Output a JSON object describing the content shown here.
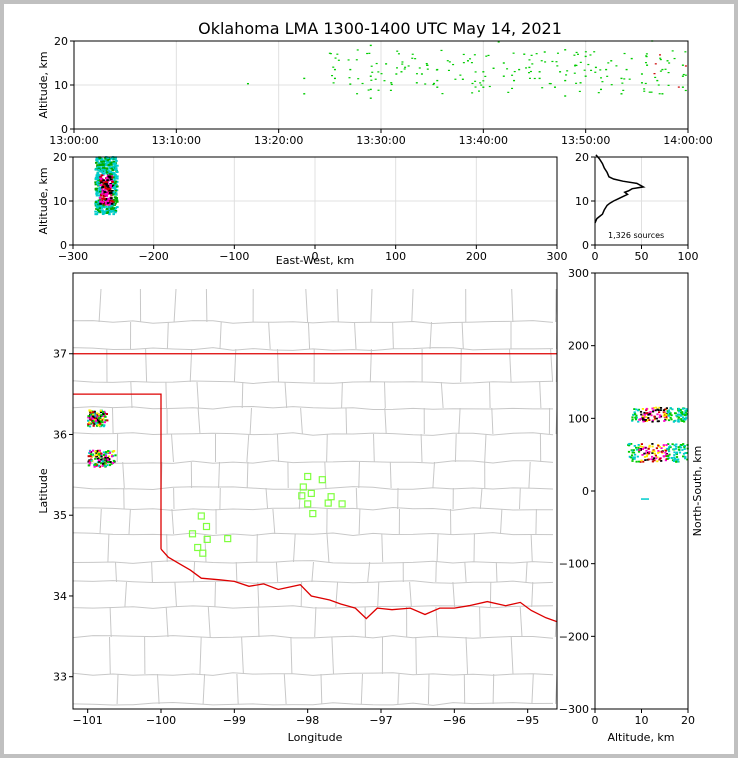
{
  "title": "Oklahoma LMA 1300-1400 UTC May 14, 2021",
  "panels": {
    "time_height": {
      "ylabel": "Altitude, km",
      "yticks": [
        "0",
        "10",
        "20"
      ],
      "xticks": [
        "13:00:00",
        "13:10:00",
        "13:20:00",
        "13:30:00",
        "13:40:00",
        "13:50:00",
        "14:00:00"
      ]
    },
    "ew_height": {
      "ylabel": "Altitude, km",
      "xlabel": "East-West, km",
      "yticks": [
        "0",
        "10",
        "20"
      ],
      "xticks": [
        "−300",
        "−200",
        "−100",
        "0",
        "100",
        "200",
        "300"
      ]
    },
    "histogram": {
      "yticks": [
        "0",
        "10",
        "20"
      ],
      "xticks": [
        "0",
        "50",
        "100"
      ],
      "annotation": "1,326 sources"
    },
    "map": {
      "xlabel": "Longitude",
      "ylabel": "Latitude",
      "xticks": [
        "−101",
        "−100",
        "−99",
        "−98",
        "−97",
        "−96",
        "−95"
      ],
      "yticks": [
        "33",
        "34",
        "35",
        "36",
        "37"
      ]
    },
    "ns_height": {
      "xlabel": "Altitude, km",
      "ylabel": "North-South, km",
      "xticks": [
        "0",
        "10",
        "20"
      ],
      "yticks": [
        "−300",
        "−200",
        "−100",
        "0",
        "100",
        "200",
        "300"
      ]
    }
  },
  "chart_data": [
    {
      "type": "scatter",
      "panel": "time_height",
      "xlabel": "",
      "ylabel": "Altitude, km",
      "xlim": [
        "13:00:00",
        "14:00:00"
      ],
      "ylim": [
        0,
        20
      ],
      "grid": true,
      "description_of_points": "green source points, mostly 13:23-14:00, altitudes 7-19 km",
      "sample_points": [
        {
          "time": "13:17:00",
          "alt": 10.3
        },
        {
          "time": "13:22:30",
          "alt": 8.0
        },
        {
          "time": "13:22:30",
          "alt": 11.5
        },
        {
          "time": "13:25:30",
          "alt": 11.5
        },
        {
          "time": "13:25:30",
          "alt": 13.5
        },
        {
          "time": "13:27:00",
          "alt": 10.2
        },
        {
          "time": "13:27:00",
          "alt": 13.5
        },
        {
          "time": "13:29:00",
          "alt": 7.0
        },
        {
          "time": "13:29:00",
          "alt": 9.0
        },
        {
          "time": "13:29:00",
          "alt": 12.0
        },
        {
          "time": "13:29:00",
          "alt": 19.0
        },
        {
          "time": "13:30:30",
          "alt": 14.8
        },
        {
          "time": "13:31:00",
          "alt": 10.5
        },
        {
          "time": "13:31:30",
          "alt": 12.5
        },
        {
          "time": "13:32:00",
          "alt": 13.0
        },
        {
          "time": "13:33:30",
          "alt": 10.5
        },
        {
          "time": "13:34:00",
          "alt": 12.5
        },
        {
          "time": "13:34:30",
          "alt": 14.5
        },
        {
          "time": "13:35:30",
          "alt": 9.5
        },
        {
          "time": "13:35:30",
          "alt": 11.0
        },
        {
          "time": "13:35:30",
          "alt": 13.5
        },
        {
          "time": "13:38:00",
          "alt": 11.3
        },
        {
          "time": "13:38:30",
          "alt": 15.5
        },
        {
          "time": "13:40:00",
          "alt": 9.5
        },
        {
          "time": "13:40:00",
          "alt": 13.0
        },
        {
          "time": "13:41:00",
          "alt": 13.8
        },
        {
          "time": "13:41:30",
          "alt": 19.8
        },
        {
          "time": "13:42:00",
          "alt": 12.0
        },
        {
          "time": "13:42:00",
          "alt": 15.0
        },
        {
          "time": "13:43:00",
          "alt": 11.0
        },
        {
          "time": "13:43:30",
          "alt": 13.5
        },
        {
          "time": "13:44:00",
          "alt": 17.0
        },
        {
          "time": "13:44:30",
          "alt": 14.0
        },
        {
          "time": "13:45:30",
          "alt": 11.5
        },
        {
          "time": "13:45:30",
          "alt": 13.0
        },
        {
          "time": "13:46:00",
          "alt": 17.5
        },
        {
          "time": "13:47:00",
          "alt": 9.5
        },
        {
          "time": "13:47:30",
          "alt": 13.0
        },
        {
          "time": "13:48:00",
          "alt": 7.5
        },
        {
          "time": "13:48:00",
          "alt": 11.0
        },
        {
          "time": "13:48:00",
          "alt": 18.0
        },
        {
          "time": "13:49:00",
          "alt": 14.5
        },
        {
          "time": "13:49:30",
          "alt": 10.5
        },
        {
          "time": "13:50:00",
          "alt": 12.0
        },
        {
          "time": "13:50:00",
          "alt": 16.5
        },
        {
          "time": "13:51:00",
          "alt": 14.0
        },
        {
          "time": "13:51:30",
          "alt": 9.0
        },
        {
          "time": "13:52:00",
          "alt": 13.5
        },
        {
          "time": "13:52:30",
          "alt": 15.5
        },
        {
          "time": "13:53:30",
          "alt": 8.0
        },
        {
          "time": "13:53:30",
          "alt": 11.5
        },
        {
          "time": "13:54:00",
          "alt": 13.5
        },
        {
          "time": "13:54:30",
          "alt": 16.0
        },
        {
          "time": "13:55:30",
          "alt": 10.5
        },
        {
          "time": "13:55:30",
          "alt": 12.5
        },
        {
          "time": "13:56:00",
          "alt": 14.5
        },
        {
          "time": "13:56:30",
          "alt": 20.0
        },
        {
          "time": "13:57:00",
          "alt": 11.0
        },
        {
          "time": "13:57:30",
          "alt": 8.0
        },
        {
          "time": "13:57:30",
          "alt": 13.5
        },
        {
          "time": "13:58:00",
          "alt": 15.5
        },
        {
          "time": "13:59:30",
          "alt": 9.5
        },
        {
          "time": "13:59:30",
          "alt": 12.0
        },
        {
          "time": "13:59:30",
          "alt": 14.5
        }
      ]
    },
    {
      "type": "scatter",
      "panel": "ew_height",
      "xlabel": "East-West, km",
      "ylabel": "Altitude, km",
      "xlim": [
        -300,
        300
      ],
      "ylim": [
        0,
        20
      ],
      "grid": true,
      "cluster": {
        "x_range": [
          -272,
          -245
        ],
        "alt_range": [
          6,
          20
        ],
        "colors": [
          "#00cccc",
          "#000000",
          "#cc0000",
          "#ff00cc",
          "#00aa00"
        ]
      }
    },
    {
      "type": "line",
      "panel": "histogram",
      "xlim": [
        0,
        100
      ],
      "ylim": [
        0,
        20
      ],
      "grid": true,
      "series": [
        {
          "x": [
            0,
            2,
            5,
            8,
            10,
            13,
            16,
            20,
            25,
            30,
            35,
            32,
            36,
            40,
            52,
            45,
            30,
            20,
            15,
            13,
            10,
            8,
            5,
            3,
            1
          ],
          "y": [
            5,
            6,
            6.5,
            7,
            8,
            9,
            9.5,
            10,
            10.5,
            11,
            11.5,
            12,
            12.3,
            12.8,
            13.2,
            14,
            14.5,
            15,
            15.5,
            16.5,
            17.5,
            18.5,
            19.5,
            20,
            20.5
          ]
        }
      ]
    },
    {
      "type": "scatter",
      "panel": "map",
      "xlabel": "Longitude",
      "ylabel": "Latitude",
      "xlim": [
        -101.2,
        -94.6
      ],
      "ylim": [
        32.6,
        38.0
      ],
      "clusters": [
        {
          "lon_range": [
            -101.0,
            -100.7
          ],
          "lat_range": [
            36.1,
            36.3
          ]
        },
        {
          "lon_range": [
            -101.0,
            -100.6
          ],
          "lat_range": [
            35.6,
            35.8
          ]
        }
      ],
      "stations": [
        {
          "lon": -98.0,
          "lat": 35.48
        },
        {
          "lon": -97.8,
          "lat": 35.44
        },
        {
          "lon": -98.06,
          "lat": 35.35
        },
        {
          "lon": -97.95,
          "lat": 35.27
        },
        {
          "lon": -98.08,
          "lat": 35.24
        },
        {
          "lon": -97.68,
          "lat": 35.23
        },
        {
          "lon": -98.0,
          "lat": 35.14
        },
        {
          "lon": -97.72,
          "lat": 35.15
        },
        {
          "lon": -97.53,
          "lat": 35.14
        },
        {
          "lon": -97.93,
          "lat": 35.02
        },
        {
          "lon": -99.45,
          "lat": 34.99
        },
        {
          "lon": -99.38,
          "lat": 34.86
        },
        {
          "lon": -99.57,
          "lat": 34.77
        },
        {
          "lon": -99.37,
          "lat": 34.7
        },
        {
          "lon": -99.09,
          "lat": 34.71
        },
        {
          "lon": -99.5,
          "lat": 34.6
        },
        {
          "lon": -99.43,
          "lat": 34.53
        }
      ]
    },
    {
      "type": "scatter",
      "panel": "ns_height",
      "xlabel": "Altitude, km",
      "ylabel": "North-South, km",
      "xlim": [
        0,
        20
      ],
      "ylim": [
        -300,
        300
      ],
      "clusters": [
        {
          "alt_range": [
            8,
            20
          ],
          "ns_range": [
            95,
            115
          ]
        },
        {
          "alt_range": [
            7,
            20
          ],
          "ns_range": [
            40,
            65
          ]
        }
      ]
    }
  ],
  "colors": {
    "lightning_low": "#00cccc",
    "lightning_mid": "#00cc00",
    "lightning_high": "#cc0000",
    "station": "#7fff3f",
    "state_border": "#dd0000",
    "county_border": "#c8c8c8",
    "grid": "#e0e0e0"
  }
}
